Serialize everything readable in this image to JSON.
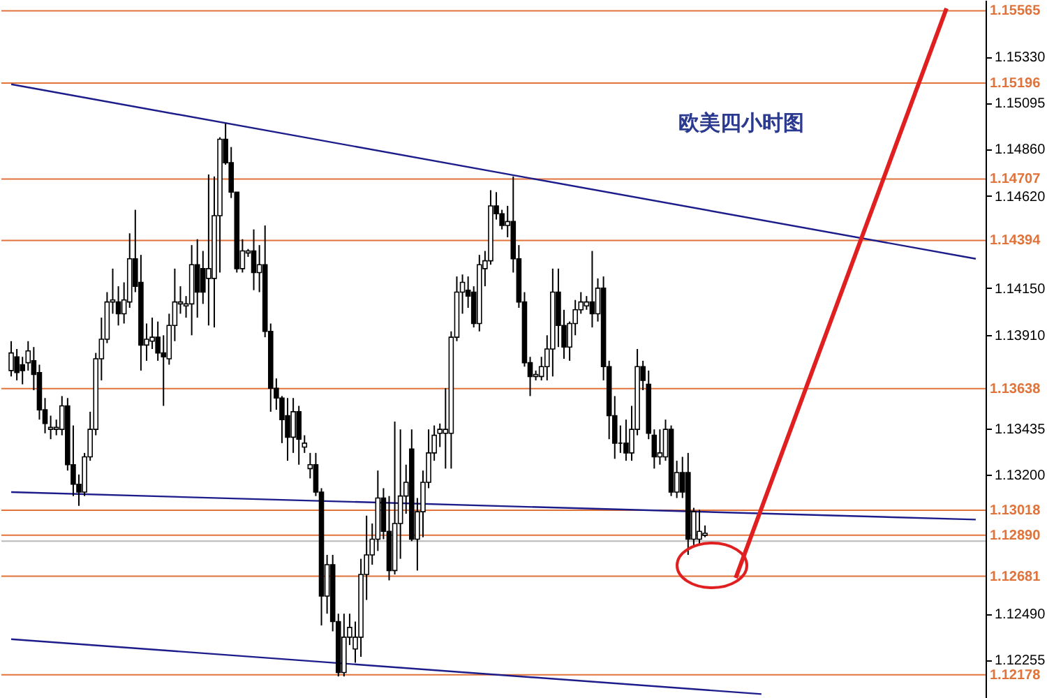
{
  "chart_data": {
    "type": "candlestick",
    "title": "欧美四小时图",
    "categories": [
      null,
      null,
      null,
      null,
      null,
      null,
      null,
      null,
      null,
      null,
      null,
      null,
      null,
      null,
      null,
      null,
      null,
      null,
      null,
      null,
      null,
      null,
      null,
      null,
      null,
      null,
      null,
      null,
      null,
      null,
      null,
      null,
      null,
      null,
      null,
      null,
      null,
      null,
      null,
      null,
      null,
      null,
      null,
      null,
      null,
      null,
      null,
      null,
      null,
      null,
      null,
      null,
      null,
      null,
      null,
      null,
      null,
      null,
      null,
      null,
      null,
      null,
      null,
      null,
      null,
      null,
      null,
      null,
      null,
      null,
      null,
      null,
      null,
      null,
      null,
      null,
      null,
      null,
      null,
      null,
      null,
      null,
      null,
      null,
      null,
      null,
      null,
      null,
      null,
      null,
      null,
      null,
      null,
      null,
      null,
      null,
      null,
      null,
      null,
      null,
      null,
      null,
      null,
      null,
      null,
      null,
      null,
      null,
      null,
      null,
      null,
      null,
      null,
      null,
      null,
      null,
      null,
      null,
      null,
      null,
      null,
      null,
      null,
      null,
      null,
      null,
      null,
      null,
      null,
      null,
      null,
      null,
      null,
      null,
      null,
      null,
      null,
      null,
      null,
      null,
      null,
      null,
      null,
      null,
      null,
      null,
      null,
      null,
      null,
      null,
      null,
      null,
      null,
      null,
      null,
      null,
      null,
      null,
      null,
      null,
      null,
      null,
      null,
      null,
      null,
      null,
      null,
      null,
      null,
      null,
      null,
      null
    ],
    "ohlc": [
      [
        1.1373,
        1.1388,
        1.137,
        1.1382
      ],
      [
        1.138,
        1.1384,
        1.1368,
        1.1372
      ],
      [
        1.1376,
        1.138,
        1.1366,
        1.1373
      ],
      [
        1.1377,
        1.1388,
        1.1373,
        1.1383
      ],
      [
        1.1378,
        1.1385,
        1.1363,
        1.1371
      ],
      [
        1.1372,
        1.1376,
        1.1348,
        1.1353
      ],
      [
        1.1353,
        1.1359,
        1.1341,
        1.1346
      ],
      [
        1.1343,
        1.135,
        1.1338,
        1.1344
      ],
      [
        1.1343,
        1.1348,
        1.134,
        1.1344
      ],
      [
        1.1343,
        1.136,
        1.134,
        1.1355
      ],
      [
        1.1355,
        1.1359,
        1.1322,
        1.1325
      ],
      [
        1.1325,
        1.1345,
        1.1309,
        1.1315
      ],
      [
        1.1315,
        1.132,
        1.1304,
        1.1311
      ],
      [
        1.1311,
        1.1331,
        1.1309,
        1.1329
      ],
      [
        1.1329,
        1.1352,
        1.1327,
        1.1343
      ],
      [
        1.1343,
        1.1382,
        1.134,
        1.1379
      ],
      [
        1.1379,
        1.14,
        1.1368,
        1.1389
      ],
      [
        1.1389,
        1.1413,
        1.1387,
        1.1408
      ],
      [
        1.1408,
        1.1425,
        1.1402,
        1.1409
      ],
      [
        1.1408,
        1.1416,
        1.1396,
        1.1402
      ],
      [
        1.1402,
        1.1418,
        1.1397,
        1.1409
      ],
      [
        1.1408,
        1.1443,
        1.1405,
        1.143
      ],
      [
        1.143,
        1.1455,
        1.1413,
        1.1416
      ],
      [
        1.1418,
        1.1432,
        1.1373,
        1.1386
      ],
      [
        1.1386,
        1.1397,
        1.1378,
        1.1389
      ],
      [
        1.1388,
        1.14,
        1.1384,
        1.139
      ],
      [
        1.139,
        1.1398,
        1.1378,
        1.1382
      ],
      [
        1.1382,
        1.1391,
        1.1355,
        1.138
      ],
      [
        1.1379,
        1.1402,
        1.1376,
        1.1396
      ],
      [
        1.1396,
        1.1425,
        1.1388,
        1.1408
      ],
      [
        1.1407,
        1.1416,
        1.1402,
        1.1408
      ],
      [
        1.1406,
        1.1411,
        1.14,
        1.1407
      ],
      [
        1.1407,
        1.1437,
        1.1391,
        1.1427
      ],
      [
        1.1427,
        1.144,
        1.14,
        1.1413
      ],
      [
        1.1425,
        1.1434,
        1.1407,
        1.1413
      ],
      [
        1.142,
        1.1473,
        1.1396,
        1.1425
      ],
      [
        1.142,
        1.1472,
        1.1395,
        1.1452
      ],
      [
        1.1452,
        1.1492,
        1.1423,
        1.1491
      ],
      [
        1.1491,
        1.1499,
        1.1478,
        1.1479
      ],
      [
        1.1479,
        1.1487,
        1.1461,
        1.1464
      ],
      [
        1.1464,
        1.1464,
        1.1423,
        1.1425
      ],
      [
        1.1425,
        1.144,
        1.1423,
        1.1434
      ],
      [
        1.1433,
        1.1435,
        1.1431,
        1.1434
      ],
      [
        1.1434,
        1.1445,
        1.1414,
        1.1423
      ],
      [
        1.1423,
        1.1437,
        1.1413,
        1.1427
      ],
      [
        1.1427,
        1.1447,
        1.139,
        1.1393
      ],
      [
        1.1393,
        1.1397,
        1.1352,
        1.1364
      ],
      [
        1.1364,
        1.1369,
        1.1353,
        1.1359
      ],
      [
        1.1359,
        1.136,
        1.1336,
        1.1348
      ],
      [
        1.135,
        1.1359,
        1.1327,
        1.1339
      ],
      [
        1.1339,
        1.1359,
        1.1331,
        1.1352
      ],
      [
        1.1352,
        1.1355,
        1.1325,
        1.1338
      ],
      [
        1.1334,
        1.134,
        1.1331,
        1.1336
      ],
      [
        1.1323,
        1.1331,
        1.1318,
        1.1325
      ],
      [
        1.1325,
        1.1331,
        1.1309,
        1.1311
      ],
      [
        1.1311,
        1.1313,
        1.1243,
        1.1258
      ],
      [
        1.1258,
        1.1279,
        1.1249,
        1.1274
      ],
      [
        1.1274,
        1.1279,
        1.124,
        1.1245
      ],
      [
        1.1245,
        1.1249,
        1.1217,
        1.1219
      ],
      [
        1.1219,
        1.1249,
        1.1217,
        1.1237
      ],
      [
        1.1237,
        1.1249,
        1.1233,
        1.1242
      ],
      [
        1.1231,
        1.1245,
        1.1224,
        1.1237
      ],
      [
        1.1237,
        1.1277,
        1.1227,
        1.1269
      ],
      [
        1.1269,
        1.1299,
        1.1256,
        1.1279
      ],
      [
        1.1279,
        1.1295,
        1.1274,
        1.1287
      ],
      [
        1.1287,
        1.1322,
        1.1281,
        1.1308
      ],
      [
        1.1308,
        1.1313,
        1.1287,
        1.1291
      ],
      [
        1.1291,
        1.1309,
        1.1266,
        1.1271
      ],
      [
        1.1271,
        1.1347,
        1.1269,
        1.1295
      ],
      [
        1.1295,
        1.1343,
        1.1277,
        1.1309
      ],
      [
        1.1309,
        1.1325,
        1.13,
        1.1316
      ],
      [
        1.1333,
        1.1343,
        1.1286,
        1.1287
      ],
      [
        1.1287,
        1.1308,
        1.1271,
        1.1301
      ],
      [
        1.1301,
        1.1322,
        1.1288,
        1.1316
      ],
      [
        1.1316,
        1.1343,
        1.1313,
        1.1331
      ],
      [
        1.1331,
        1.1345,
        1.1327,
        1.134
      ],
      [
        1.1341,
        1.1346,
        1.1334,
        1.1343
      ],
      [
        1.1341,
        1.1364,
        1.1323,
        1.1343
      ],
      [
        1.1341,
        1.1393,
        1.1323,
        1.139
      ],
      [
        1.139,
        1.1421,
        1.1388,
        1.1413
      ],
      [
        1.1413,
        1.1422,
        1.1402,
        1.1418
      ],
      [
        1.1414,
        1.1421,
        1.1405,
        1.1411
      ],
      [
        1.1413,
        1.1416,
        1.1395,
        1.1397
      ],
      [
        1.1397,
        1.1432,
        1.1393,
        1.1427
      ],
      [
        1.1425,
        1.1434,
        1.1416,
        1.1429
      ],
      [
        1.1429,
        1.1465,
        1.1427,
        1.1457
      ],
      [
        1.1457,
        1.1464,
        1.145,
        1.1453
      ],
      [
        1.1453,
        1.1455,
        1.1445,
        1.1447
      ],
      [
        1.1447,
        1.1457,
        1.1441,
        1.1449
      ],
      [
        1.1449,
        1.1472,
        1.1423,
        1.143
      ],
      [
        1.143,
        1.1437,
        1.1405,
        1.1408
      ],
      [
        1.1408,
        1.1413,
        1.1375,
        1.1377
      ],
      [
        1.1377,
        1.138,
        1.136,
        1.137
      ],
      [
        1.137,
        1.1373,
        1.1368,
        1.1371
      ],
      [
        1.137,
        1.138,
        1.1368,
        1.1375
      ],
      [
        1.1375,
        1.1391,
        1.1368,
        1.1384
      ],
      [
        1.1384,
        1.1425,
        1.137,
        1.1413
      ],
      [
        1.1413,
        1.1425,
        1.1385,
        1.1396
      ],
      [
        1.1396,
        1.1404,
        1.1379,
        1.1385
      ],
      [
        1.1385,
        1.1398,
        1.1378,
        1.1397
      ],
      [
        1.1397,
        1.1409,
        1.1391,
        1.1404
      ],
      [
        1.1404,
        1.1413,
        1.1402,
        1.1408
      ],
      [
        1.1406,
        1.1411,
        1.1404,
        1.1408
      ],
      [
        1.1408,
        1.1434,
        1.1395,
        1.1402
      ],
      [
        1.1402,
        1.142,
        1.1398,
        1.1415
      ],
      [
        1.1415,
        1.1421,
        1.1368,
        1.1375
      ],
      [
        1.1375,
        1.1378,
        1.1338,
        1.135
      ],
      [
        1.135,
        1.136,
        1.1328,
        1.1336
      ],
      [
        1.1336,
        1.1345,
        1.1331,
        1.1336
      ],
      [
        1.1336,
        1.1348,
        1.1327,
        1.1331
      ],
      [
        1.1331,
        1.1355,
        1.1327,
        1.1343
      ],
      [
        1.1343,
        1.1384,
        1.134,
        1.1375
      ],
      [
        1.1375,
        1.1378,
        1.1363,
        1.1368
      ],
      [
        1.1366,
        1.1373,
        1.1338,
        1.1341
      ],
      [
        1.134,
        1.1343,
        1.1323,
        1.1329
      ],
      [
        1.1329,
        1.1343,
        1.1325,
        1.1331
      ],
      [
        1.1329,
        1.1348,
        1.1327,
        1.1343
      ],
      [
        1.1343,
        1.1345,
        1.1309,
        1.1311
      ],
      [
        1.1311,
        1.1327,
        1.1308,
        1.1321
      ],
      [
        1.1321,
        1.1329,
        1.1308,
        1.1311
      ],
      [
        1.1321,
        1.1331,
        1.1279,
        1.1287
      ],
      [
        1.1287,
        1.1303,
        1.1284,
        1.1301
      ],
      [
        1.1287,
        1.1302,
        1.1284,
        1.1291
      ],
      [
        1.1289,
        1.1294,
        1.1288,
        1.129
      ],
      null,
      null,
      null,
      null,
      null,
      null,
      null,
      null,
      null,
      null,
      null,
      null,
      null,
      null,
      null,
      null,
      null,
      null,
      null,
      null,
      null,
      null,
      null,
      null,
      null,
      null,
      null,
      null,
      null,
      null,
      null,
      null,
      null,
      null,
      null,
      null,
      null,
      null,
      null,
      null,
      null,
      null,
      null,
      null,
      null,
      null,
      null,
      null
    ],
    "series": [
      {
        "type": "line",
        "color": "#1c1c8a",
        "values": [
          1.1519,
          null,
          null,
          null,
          null,
          null,
          null,
          null,
          null,
          null,
          null,
          null,
          null,
          null,
          null,
          null,
          null,
          null,
          null,
          null,
          null,
          null,
          null,
          null,
          null,
          null,
          null,
          null,
          null,
          null,
          null,
          null,
          null,
          null,
          null,
          null,
          null,
          null,
          null,
          null,
          null,
          null,
          null,
          null,
          null,
          null,
          null,
          null,
          null,
          null,
          null,
          null,
          null,
          null,
          null,
          null,
          null,
          null,
          null,
          null,
          null,
          null,
          null,
          null,
          null,
          null,
          null,
          null,
          null,
          null,
          null,
          null,
          null,
          null,
          null,
          null,
          null,
          null,
          null,
          null,
          null,
          null,
          null,
          null,
          null,
          null,
          null,
          null,
          null,
          null,
          null,
          null,
          null,
          null,
          null,
          null,
          null,
          null,
          null,
          null,
          null,
          null,
          null,
          null,
          null,
          null,
          null,
          null,
          null,
          null,
          null,
          null,
          null,
          null,
          null,
          null,
          null,
          null,
          null,
          null,
          null,
          null,
          null,
          null,
          null,
          null,
          null,
          null,
          null,
          null,
          null,
          null,
          null,
          null,
          null,
          null,
          null,
          null,
          null,
          null,
          null,
          null,
          null,
          null,
          null,
          null,
          null,
          null,
          null,
          null,
          null,
          null,
          null,
          null,
          null,
          null,
          null,
          null,
          null,
          null,
          null,
          null,
          null,
          null,
          null,
          null,
          null,
          null,
          null,
          null,
          null,
          1.143
        ]
      },
      {
        "type": "line",
        "color": "#1c1c8a",
        "values": [
          1.1311,
          null,
          null,
          null,
          null,
          null,
          null,
          null,
          null,
          null,
          null,
          null,
          null,
          null,
          null,
          null,
          null,
          null,
          null,
          null,
          null,
          null,
          null,
          null,
          null,
          null,
          null,
          null,
          null,
          null,
          null,
          null,
          null,
          null,
          null,
          null,
          null,
          null,
          null,
          null,
          null,
          null,
          null,
          null,
          null,
          null,
          null,
          null,
          null,
          null,
          null,
          null,
          null,
          null,
          null,
          null,
          null,
          null,
          null,
          null,
          null,
          null,
          null,
          null,
          null,
          null,
          null,
          null,
          null,
          null,
          null,
          null,
          null,
          null,
          null,
          null,
          null,
          null,
          null,
          null,
          null,
          null,
          null,
          null,
          null,
          null,
          null,
          null,
          null,
          null,
          null,
          null,
          null,
          null,
          null,
          null,
          null,
          null,
          null,
          null,
          null,
          null,
          null,
          null,
          null,
          null,
          null,
          null,
          null,
          null,
          null,
          null,
          null,
          null,
          null,
          null,
          null,
          null,
          null,
          null,
          null,
          null,
          null,
          null,
          null,
          null,
          null,
          null,
          null,
          null,
          null,
          null,
          null,
          null,
          null,
          null,
          null,
          null,
          null,
          null,
          null,
          null,
          null,
          null,
          null,
          null,
          null,
          null,
          null,
          null,
          null,
          null,
          null,
          null,
          null,
          null,
          null,
          null,
          null,
          null,
          null,
          null,
          null,
          null,
          null,
          null,
          null,
          null,
          null,
          null,
          null,
          1.1297
        ]
      },
      {
        "type": "line",
        "color": "#1c1c8a",
        "values": [
          1.1236,
          null,
          null,
          null,
          null,
          null,
          null,
          null,
          null,
          null,
          null,
          null,
          null,
          null,
          null,
          null,
          null,
          null,
          null,
          null,
          null,
          null,
          null,
          null,
          null,
          null,
          null,
          null,
          null,
          null,
          null,
          null,
          null,
          null,
          null,
          null,
          null,
          null,
          null,
          null,
          null,
          null,
          null,
          null,
          null,
          null,
          null,
          null,
          null,
          null,
          null,
          null,
          null,
          null,
          null,
          null,
          null,
          null,
          null,
          null,
          null,
          null,
          null,
          null,
          null,
          null,
          null,
          null,
          null,
          null,
          null,
          null,
          null,
          null,
          null,
          null,
          null,
          null,
          null,
          null,
          null,
          null,
          null,
          null,
          null,
          null,
          null,
          null,
          null,
          null,
          null,
          null,
          null,
          null,
          null,
          null,
          null,
          null,
          null,
          null,
          null,
          null,
          null,
          null,
          null,
          null,
          null,
          null,
          null,
          null,
          null,
          null,
          null,
          null,
          null,
          null,
          null,
          null,
          null,
          null,
          null,
          null,
          null,
          null,
          null,
          null,
          null,
          null,
          null,
          null,
          null,
          null,
          null,
          1.1208,
          null,
          null,
          null,
          null,
          null,
          null,
          null,
          null,
          null,
          null,
          null,
          null,
          null,
          null,
          null,
          null,
          null,
          null,
          null,
          null,
          null,
          null,
          null,
          null,
          null,
          null,
          null,
          null,
          null,
          null,
          null,
          null,
          null,
          null,
          null,
          null,
          null,
          null
        ]
      }
    ],
    "ylim": [
      1.1206,
      1.1562
    ],
    "yticks": [
      {
        "value": 1.1533,
        "label": "1.15330"
      },
      1.15095,
      {
        "value": 1.1486,
        "label": "1.14860"
      },
      {
        "value": 1.1462,
        "label": "1.14620"
      },
      {
        "value": 1.1415,
        "label": "1.14150"
      },
      {
        "value": 1.1391,
        "label": "1.13910"
      },
      1.13435,
      {
        "value": 1.132,
        "label": "1.13200"
      },
      {
        "value": 1.1249,
        "label": "1.12490"
      },
      1.12255
    ],
    "ref_lines": [
      {
        "axis": "y",
        "value": 1.15565,
        "label": "1.15565",
        "color": "#e0733a"
      },
      {
        "axis": "y",
        "value": 1.15196,
        "label": "1.15196",
        "color": "#e0733a"
      },
      {
        "axis": "y",
        "value": 1.14707,
        "label": "1.14707",
        "color": "#e0733a"
      },
      {
        "axis": "y",
        "value": 1.14394,
        "label": "1.14394",
        "color": "#e0733a"
      },
      {
        "axis": "y",
        "value": 1.13638,
        "label": "1.13638",
        "color": "#e0733a"
      },
      {
        "axis": "y",
        "value": 1.13018,
        "label": "1.13018",
        "color": "#e0733a"
      },
      {
        "axis": "y",
        "value": 1.1289,
        "label": "1.12890",
        "color": "#e0733a"
      },
      {
        "axis": "y",
        "value": 1.12681,
        "label": "1.12681",
        "color": "#e0733a"
      },
      {
        "axis": "y",
        "value": 1.12178,
        "label": "1.12178",
        "color": "#e0733a"
      },
      {
        "axis": "y",
        "value": 1.1286,
        "color": "#b8b8b8"
      }
    ],
    "grid": false
  }
}
